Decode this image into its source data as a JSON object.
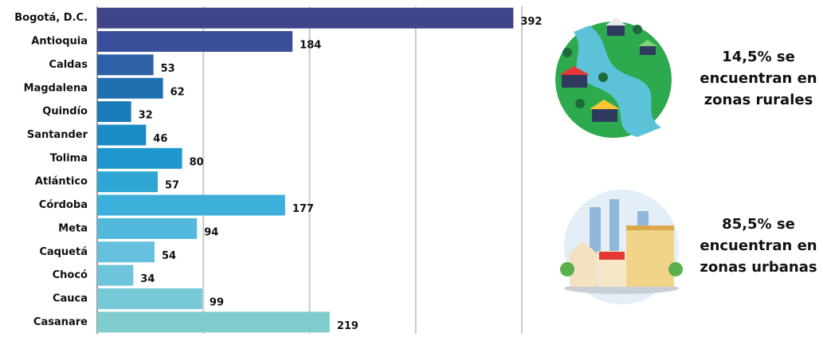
{
  "chart_data": {
    "type": "bar",
    "orientation": "horizontal",
    "categories": [
      "Bogotá, D.C.",
      "Antioquia",
      "Caldas",
      "Magdalena",
      "Quindío",
      "Santander",
      "Tolima",
      "Atlántico",
      "Córdoba",
      "Meta",
      "Caquetá",
      "Chocó",
      "Cauca",
      "Casanare"
    ],
    "values": [
      392,
      184,
      53,
      62,
      32,
      46,
      80,
      57,
      177,
      94,
      54,
      34,
      99,
      219
    ],
    "colors": [
      "#3e4589",
      "#3a4f9a",
      "#2e60a6",
      "#2070b0",
      "#1a7dba",
      "#1b8bc4",
      "#1e98cc",
      "#2ea5d3",
      "#3cb0da",
      "#52b9dc",
      "#64c0dc",
      "#6ec4db",
      "#75c8d6",
      "#80cdcf"
    ],
    "xlim": [
      0,
      400
    ],
    "xticks": [
      0,
      100,
      200,
      300,
      400
    ],
    "grid": true
  },
  "notes": [
    {
      "lines": [
        "14,5% se",
        "encuentran en",
        "zonas rurales"
      ]
    },
    {
      "lines": [
        "85,5% se",
        "encuentran en",
        "zonas urbanas"
      ]
    }
  ]
}
